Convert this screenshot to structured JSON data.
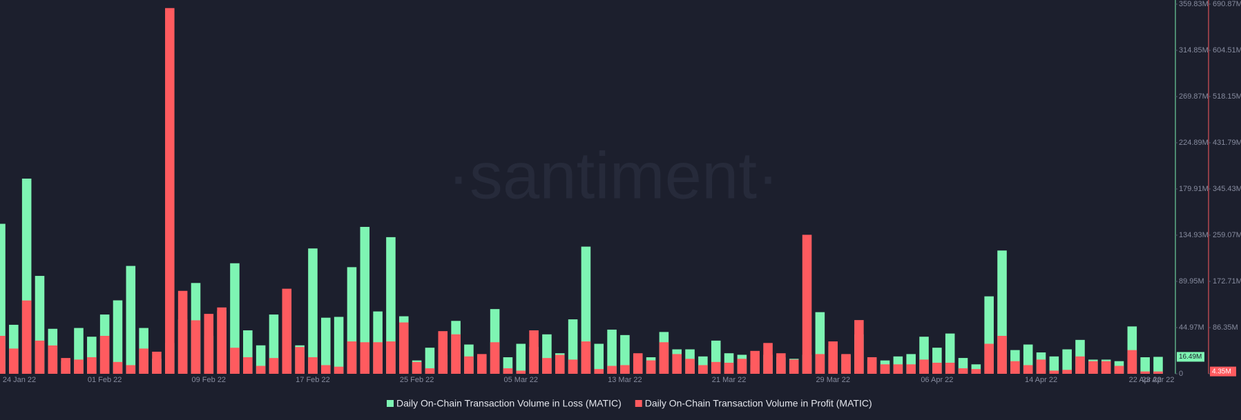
{
  "chart_data": {
    "type": "bar",
    "watermark": "·santiment·",
    "categories": [
      "24 Jan 22",
      null,
      null,
      null,
      null,
      null,
      null,
      null,
      "01 Feb 22",
      null,
      null,
      null,
      null,
      null,
      null,
      null,
      "09 Feb 22",
      null,
      null,
      null,
      null,
      null,
      null,
      null,
      "17 Feb 22",
      null,
      null,
      null,
      null,
      null,
      null,
      null,
      "25 Feb 22",
      null,
      null,
      null,
      null,
      null,
      null,
      null,
      "05 Mar 22",
      null,
      null,
      null,
      null,
      null,
      null,
      null,
      "13 Mar 22",
      null,
      null,
      null,
      null,
      null,
      null,
      null,
      "21 Mar 22",
      null,
      null,
      null,
      null,
      null,
      null,
      null,
      "29 Mar 22",
      null,
      null,
      null,
      null,
      null,
      null,
      null,
      "06 Apr 22",
      null,
      null,
      null,
      null,
      null,
      null,
      null,
      "14 Apr 22",
      null,
      null,
      null,
      null,
      null,
      null,
      null,
      "22 Apr 22",
      "23 Apr 22"
    ],
    "series": [
      {
        "name": "Daily On-Chain Transaction Volume in Loss (MATIC)",
        "color": "#7ef5b3",
        "axis": "y",
        "values": [
          146,
          47.7,
          190,
          95.3,
          43.8,
          12.3,
          44.6,
          36.1,
          57.7,
          71.5,
          105,
          44.6,
          14.6,
          30,
          53,
          88.4,
          36.9,
          61.5,
          107.6,
          42.3,
          27.7,
          57.7,
          23.8,
          27.7,
          122,
          54.6,
          55.4,
          103.8,
          143,
          60.7,
          133,
          56,
          13,
          25.4,
          18.5,
          51.5,
          28.5,
          18.5,
          63,
          16.1,
          29.2,
          26.1,
          38.4,
          20,
          53,
          123.8,
          29.2,
          43,
          37.7,
          19.2,
          16.1,
          40.7,
          23.8,
          23.8,
          16.9,
          32.3,
          20,
          18.5,
          8.5,
          18.5,
          16.1,
          14.6,
          18.5,
          60,
          26.9,
          18.5,
          38.4,
          13.8,
          13,
          16.9,
          19.2,
          36.1,
          25.4,
          39.2,
          15.4,
          9.2,
          75.4,
          120,
          23.1,
          28.5,
          20.8,
          16.9,
          23.8,
          33,
          13.8,
          13.8,
          12.3,
          46.1,
          16.1,
          16.49
        ],
        "value_labels": [
          null,
          null,
          null,
          null,
          null,
          null,
          null,
          null,
          null,
          null,
          null,
          null,
          null,
          null,
          null,
          null,
          null,
          null,
          null,
          null,
          null,
          null,
          null,
          null,
          null,
          null,
          null,
          null,
          null,
          null,
          null,
          null,
          null,
          null,
          null,
          null,
          null,
          null,
          null,
          null,
          null,
          null,
          null,
          null,
          null,
          null,
          null,
          null,
          null,
          null,
          null,
          null,
          null,
          null,
          null,
          null,
          null,
          null,
          null,
          null,
          null,
          null,
          null,
          null,
          null,
          null,
          null,
          null,
          null,
          null,
          null,
          null,
          null,
          null,
          null,
          null,
          null,
          null,
          null,
          null,
          null,
          null,
          null,
          null,
          null,
          null,
          null,
          null,
          null,
          "16.49M"
        ]
      },
      {
        "name": "Daily On-Chain Transaction Volume in Profit (MATIC)",
        "color": "#ff5b5f",
        "axis": "y2",
        "values": [
          70.9,
          47.2,
          137,
          62,
          53,
          29.5,
          26.6,
          31,
          70.9,
          22.1,
          16.2,
          47.2,
          41.3,
          683.5,
          155,
          100,
          112,
          124,
          48.7,
          31,
          14.8,
          29.5,
          159,
          50,
          31,
          16.2,
          13.3,
          60.5,
          59,
          59,
          60.5,
          96,
          22.1,
          10.3,
          79.7,
          73.8,
          32.5,
          36.9,
          59,
          10.3,
          5.9,
          81.2,
          29.5,
          35.4,
          26.6,
          60.5,
          8.9,
          14.8,
          16.2,
          38.4,
          25.1,
          59,
          36.9,
          28,
          16.2,
          22.1,
          20.7,
          28,
          42.8,
          57.6,
          38.4,
          26.6,
          259.8,
          36.9,
          60.5,
          36.9,
          100.4,
          31,
          17.7,
          17.7,
          17.7,
          26.6,
          20.7,
          20.7,
          10.3,
          8.9,
          56.1,
          70.9,
          23.6,
          16.2,
          26.6,
          5.9,
          7.4,
          32.5,
          23.6,
          23.6,
          14.8,
          44.3,
          4.4,
          4.35
        ],
        "value_labels": [
          null,
          null,
          null,
          null,
          null,
          null,
          null,
          null,
          null,
          null,
          null,
          null,
          null,
          null,
          null,
          null,
          null,
          null,
          null,
          null,
          null,
          null,
          null,
          null,
          null,
          null,
          null,
          null,
          null,
          null,
          null,
          null,
          null,
          null,
          null,
          null,
          null,
          null,
          null,
          null,
          null,
          null,
          null,
          null,
          null,
          null,
          null,
          null,
          null,
          null,
          null,
          null,
          null,
          null,
          null,
          null,
          null,
          null,
          null,
          null,
          null,
          null,
          null,
          null,
          null,
          null,
          null,
          null,
          null,
          null,
          null,
          null,
          null,
          null,
          null,
          null,
          null,
          null,
          null,
          null,
          null,
          null,
          null,
          null,
          null,
          null,
          null,
          null,
          null,
          "4.35M"
        ]
      }
    ],
    "ylim": [
      0,
      359.83
    ],
    "yticks": [
      0,
      {
        "value": 44.97,
        "label": "44.97M"
      },
      {
        "value": 89.95,
        "label": "89.95M"
      },
      {
        "value": 134.93,
        "label": "134.93M"
      },
      {
        "value": 179.91,
        "label": "179.91M"
      },
      {
        "value": 224.89,
        "label": "224.89M"
      },
      {
        "value": 269.87,
        "label": "269.87M"
      },
      {
        "value": 314.85,
        "label": "314.85M"
      },
      {
        "value": 359.83,
        "label": "359.83M"
      }
    ],
    "y2lim": [
      0,
      690.87
    ],
    "y2ticks": [
      0,
      {
        "value": 86.35,
        "label": "86.35M"
      },
      {
        "value": 172.71,
        "label": "172.71M"
      },
      {
        "value": 259.07,
        "label": "259.07M"
      },
      {
        "value": 345.43,
        "label": "345.43M"
      },
      {
        "value": 431.79,
        "label": "431.79M"
      },
      {
        "value": 518.15,
        "label": "518.15M"
      },
      {
        "value": 604.51,
        "label": "604.51M"
      },
      {
        "value": 690.87,
        "label": "690.87M"
      }
    ],
    "grid": false
  }
}
